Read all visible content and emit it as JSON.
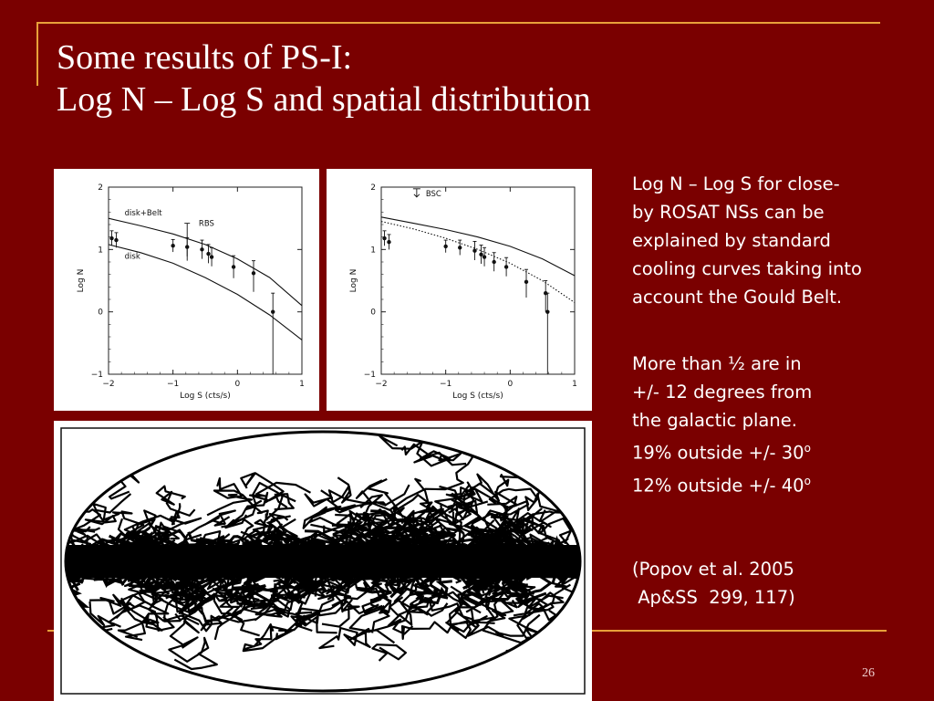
{
  "slide": {
    "title_line1": "Some results of  PS-I:",
    "title_line2": "Log N – Log S and spatial distribution",
    "page_number": "26"
  },
  "text_blocks": {
    "block1": [
      "Log N – Log S for close-",
      "by ROSAT NSs can be",
      "explained by standard",
      "cooling curves taking into",
      "account the Gould Belt."
    ],
    "block2": [
      "More than ½  are in",
      "+/- 12 degrees from",
      "the galactic plane.",
      "19% outside +/- 30",
      "12% outside +/- 40"
    ],
    "degree_mark": "o",
    "citation": [
      "(Popov et al. 2005",
      " Ap&SS  299, 117)"
    ]
  },
  "colors": {
    "background": "#7a0000",
    "accent": "#e8a13a",
    "text": "#ffffff"
  },
  "chart_data": [
    {
      "type": "scatter",
      "xlabel": "Log  S  (cts/s)",
      "ylabel": "Log  N",
      "xlim": [
        -2,
        1
      ],
      "ylim": [
        -1,
        2
      ],
      "x_ticks": [
        "−2",
        "−1",
        "0",
        "1"
      ],
      "y_ticks": [
        "−1",
        "0",
        "1",
        "2"
      ],
      "annotations": [
        "disk+Belt",
        "RBS",
        "disk"
      ],
      "curves": [
        {
          "name": "disk+Belt",
          "x": [
            -2,
            -1.5,
            -1,
            -0.5,
            0,
            0.5,
            1
          ],
          "y": [
            1.5,
            1.38,
            1.25,
            1.08,
            0.85,
            0.55,
            0.1
          ]
        },
        {
          "name": "disk",
          "x": [
            -2,
            -1.5,
            -1,
            -0.5,
            0,
            0.5,
            1
          ],
          "y": [
            1.08,
            0.95,
            0.78,
            0.55,
            0.28,
            -0.05,
            -0.45
          ]
        }
      ],
      "points": {
        "x": [
          -1.95,
          -1.88,
          -1.0,
          -0.78,
          -0.55,
          -0.45,
          -0.4,
          -0.06,
          0.25,
          0.55
        ],
        "y": [
          1.18,
          1.15,
          1.06,
          1.04,
          1.0,
          0.93,
          0.88,
          0.72,
          0.62,
          0.0
        ],
        "err_low": [
          0.12,
          0.12,
          0.1,
          0.15,
          0.15,
          0.15,
          0.15,
          0.18,
          0.3,
          1.0
        ],
        "err_high": [
          0.12,
          0.12,
          0.1,
          0.15,
          0.15,
          0.15,
          0.15,
          0.18,
          0.2,
          0.3
        ]
      },
      "upper_limit": {
        "label": "RBS",
        "x": -0.78,
        "y_top": 1.42,
        "y_bottom": 0.82
      }
    },
    {
      "type": "scatter",
      "xlabel": "Log  S  (cts/s)",
      "ylabel": "Log  N",
      "xlim": [
        -2,
        1
      ],
      "ylim": [
        -1,
        2
      ],
      "x_ticks": [
        "−2",
        "−1",
        "0",
        "1"
      ],
      "y_ticks": [
        "−1",
        "0",
        "1",
        "2"
      ],
      "annotations": [
        "BSC"
      ],
      "curves": [
        {
          "name": "solid",
          "x": [
            -2,
            -1.5,
            -1,
            -0.5,
            0,
            0.5,
            1
          ],
          "y": [
            1.52,
            1.42,
            1.32,
            1.2,
            1.05,
            0.85,
            0.58
          ]
        },
        {
          "name": "dotted",
          "x": [
            -2,
            -1.5,
            -1,
            -0.5,
            0,
            0.5,
            1
          ],
          "y": [
            1.45,
            1.33,
            1.18,
            1.0,
            0.78,
            0.5,
            0.15
          ]
        }
      ],
      "points": {
        "x": [
          -1.95,
          -1.88,
          -1.0,
          -0.78,
          -0.55,
          -0.45,
          -0.4,
          -0.25,
          -0.06,
          0.25,
          0.55,
          0.58
        ],
        "y": [
          1.18,
          1.12,
          1.05,
          1.03,
          0.98,
          0.92,
          0.88,
          0.8,
          0.72,
          0.48,
          0.3,
          0.0
        ],
        "err_low": [
          0.12,
          0.12,
          0.1,
          0.12,
          0.15,
          0.15,
          0.15,
          0.15,
          0.15,
          0.25,
          0.3,
          1.0
        ],
        "err_high": [
          0.12,
          0.12,
          0.1,
          0.12,
          0.15,
          0.15,
          0.15,
          0.15,
          0.15,
          0.2,
          0.2,
          0.3
        ]
      }
    }
  ],
  "sky_map": {
    "projection": "Aitoff ellipse",
    "content": "simulated neutron star trajectories concentrated along the galactic plane"
  }
}
